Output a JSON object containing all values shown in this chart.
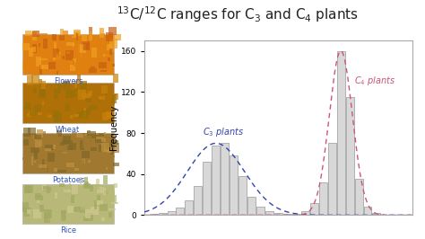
{
  "title": "$^{13}$C/$^{12}$C ranges for C$_3$ and C$_4$ plants",
  "title_fontsize": 11,
  "ylabel": "Frequency",
  "ylabel_fontsize": 7,
  "xlim": [
    -35,
    -5
  ],
  "ylim": [
    0,
    170
  ],
  "yticks": [
    0,
    40,
    80,
    120,
    160
  ],
  "background_color": "#ffffff",
  "plot_bg": "#ffffff",
  "c3_label": "C$_3$ plants",
  "c4_label": "C$_4$ plants",
  "c3_color": "#3344aa",
  "c4_color": "#cc5577",
  "bar_facecolor": "#d8d8d8",
  "bar_edgecolor": "#999999",
  "c3_mean": -27.0,
  "c3_std": 3.2,
  "c3_peak": 70,
  "c4_mean": -13.0,
  "c4_std": 1.3,
  "c4_peak": 160,
  "c3_bars_x": [
    -34,
    -33,
    -32,
    -31,
    -30,
    -29,
    -28,
    -27,
    -26,
    -25,
    -24,
    -23,
    -22,
    -21,
    -20,
    -19,
    -18
  ],
  "c3_bars_h": [
    1,
    2,
    4,
    7,
    14,
    28,
    52,
    68,
    70,
    58,
    38,
    18,
    8,
    4,
    2,
    1,
    0
  ],
  "c4_bars_x": [
    -18,
    -17,
    -16,
    -15,
    -14,
    -13,
    -12,
    -11,
    -10,
    -9,
    -8
  ],
  "c4_bars_h": [
    1,
    4,
    12,
    32,
    70,
    160,
    115,
    35,
    8,
    2,
    0
  ],
  "plant_labels": [
    "Flowers",
    "Wheat",
    "Potatoes",
    "Rice"
  ],
  "plant_label_color": "#3355bb",
  "plant_colors_top": [
    "#f0a020",
    "#c8820a",
    "#c09040",
    "#cfc890"
  ],
  "plant_colors_mid": [
    "#e08010",
    "#b07008",
    "#a07830",
    "#b8b878"
  ],
  "plant_colors_bot": [
    "#c86010",
    "#987008",
    "#806828",
    "#a0a860"
  ]
}
